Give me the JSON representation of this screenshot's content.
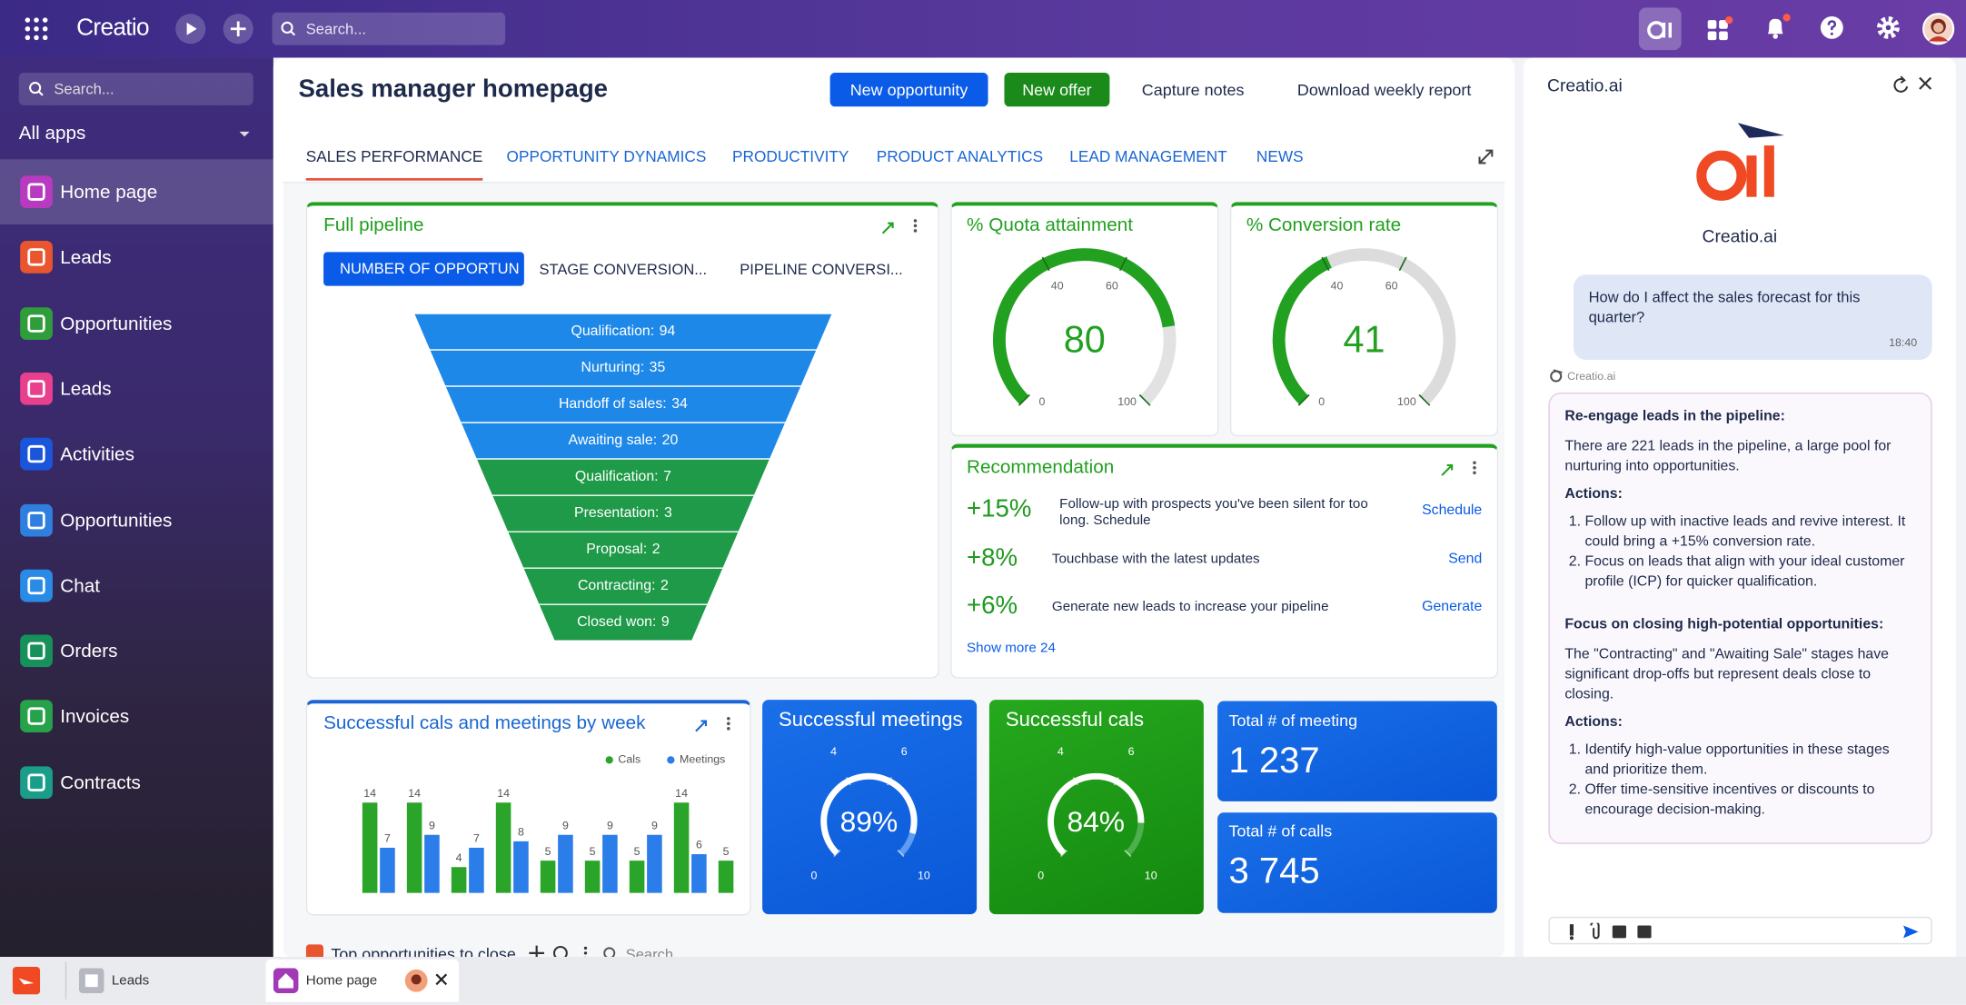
{
  "topbar": {
    "brand": "Creatio",
    "search": "Search..."
  },
  "sidebar": {
    "search": "Search...",
    "apps": "All apps",
    "items": [
      "Home page",
      "Leads",
      "Opportunities",
      "Leads",
      "Activities",
      "Opportunities",
      "Chat",
      "Orders",
      "Invoices",
      "Contracts"
    ]
  },
  "header": {
    "title": "Sales manager homepage",
    "buttons": [
      "New opportunity",
      "New offer",
      "Capture notes",
      "Download weekly report"
    ]
  },
  "tabs": [
    "SALES PERFORMANCE",
    "OPPORTUNITY DYNAMICS",
    "PRODUCTIVITY",
    "PRODUCT ANALYTICS",
    "LEAD MANAGEMENT",
    "NEWS"
  ],
  "pipeline_tabs": [
    "NUMBER OF OPPORTUN",
    "STAGE CONVERSION...",
    "PIPELINE CONVERSI..."
  ],
  "chart_data": [
    {
      "type": "funnel",
      "title": "Full pipeline",
      "categories": [
        "Qualification:",
        "Nurturing:",
        "Handoff of sales:",
        "Awaiting sale:",
        "Qualification:",
        "Presentation:",
        "Proposal:",
        "Contracting:",
        "Closed won:"
      ],
      "values": [
        94,
        35,
        34,
        20,
        7,
        3,
        2,
        2,
        9
      ],
      "colors": [
        "#1e88e8",
        "#1e88e8",
        "#1e88e8",
        "#1e88e8",
        "#1e9a48",
        "#1e9a48",
        "#1e9a48",
        "#1e9a48",
        "#1e9a48"
      ]
    },
    {
      "type": "gauge",
      "title": "% Quota attainment",
      "value": 80,
      "ylim": [
        0,
        100
      ],
      "yticks": [
        0,
        40,
        60,
        100
      ],
      "color": "#22a020",
      "track_color": "#e2e2e2"
    },
    {
      "type": "gauge",
      "title": "% Conversion rate",
      "value": 41,
      "ylim": [
        0,
        100
      ],
      "yticks": [
        0,
        40,
        60,
        100
      ],
      "color": "#22a020",
      "track_color": "#dcdcdc"
    },
    {
      "type": "bar",
      "title": "Successful cals and meetings by week",
      "categories": [
        null,
        null,
        null,
        null,
        null,
        null,
        null,
        null,
        null
      ],
      "legend": "top-right",
      "series": [
        {
          "name": "Cals",
          "color": "#2aa52a",
          "values": [
            14,
            14,
            4,
            14,
            5,
            5,
            5,
            14,
            5
          ]
        },
        {
          "name": "Meetings",
          "color": "#2b7de9",
          "values": [
            7,
            9,
            7,
            8,
            9,
            9,
            9,
            6,
            null
          ]
        }
      ]
    },
    {
      "type": "gauge",
      "title": "Successful meetings",
      "value": 89,
      "value_label": "89%",
      "ylim": [
        0,
        100
      ],
      "yticks": [
        {
          "value": 0,
          "label": "0"
        },
        {
          "value": 40,
          "label": "4"
        },
        {
          "value": 60,
          "label": "6"
        },
        {
          "value": 100,
          "label": "10"
        }
      ],
      "color": "#ffffff",
      "track_color": "#5d9cf0"
    },
    {
      "type": "gauge",
      "title": "Successful cals",
      "value": 84,
      "value_label": "84%",
      "ylim": [
        0,
        100
      ],
      "yticks": [
        {
          "value": 0,
          "label": "0"
        },
        {
          "value": 40,
          "label": "4"
        },
        {
          "value": 60,
          "label": "6"
        },
        {
          "value": 100,
          "label": "10"
        }
      ],
      "color": "#ffffff",
      "track_color": "#4cb04c"
    }
  ],
  "recommendation": {
    "title": "Recommendation",
    "items": [
      {
        "change": "+15%",
        "text": "Follow-up with prospects you've been silent for too long. Schedule",
        "action": "Schedule"
      },
      {
        "change": "+8%",
        "text": "Touchbase with the latest updates",
        "action": "Send"
      },
      {
        "change": "+6%",
        "text": "Generate new leads to increase your pipeline",
        "action": "Generate"
      }
    ],
    "more": "Show more 24"
  },
  "kpis": [
    {
      "title": "Total # of meeting",
      "value": 1237,
      "value_label": "1 237"
    },
    {
      "title": "Total # of calls",
      "value": 3745,
      "value_label": "3 745"
    }
  ],
  "bottom": {
    "title": "Top opportunities to close",
    "search": "Search"
  },
  "assistant": {
    "title": "Creatio.ai",
    "logo_caption": "Creatio.ai",
    "question": "How do I affect the sales forecast for this quarter?",
    "time": "18:40",
    "sender": "Creatio.ai",
    "answer": [
      {
        "heading": "Re-engage leads in the pipeline:",
        "text": "There are 221 leads in the pipeline, a large pool for nurturing into opportunities.",
        "actions_label": "Actions:",
        "actions": [
          "Follow up with inactive leads and revive interest. It could bring a +15% conversion rate.",
          "Focus on leads that align with your ideal customer profile (ICP) for quicker qualification."
        ]
      },
      {
        "heading": "Focus on closing high-potential opportunities:",
        "text": "The \"Contracting\" and \"Awaiting Sale\" stages have significant drop-offs but represent deals close to closing.",
        "actions_label": "Actions:",
        "actions": [
          "Identify high-value opportunities in these stages and prioritize them.",
          "Offer time-sensitive incentives or discounts to encourage decision-making."
        ]
      }
    ]
  },
  "taskbar": [
    "Leads",
    "Home page"
  ]
}
